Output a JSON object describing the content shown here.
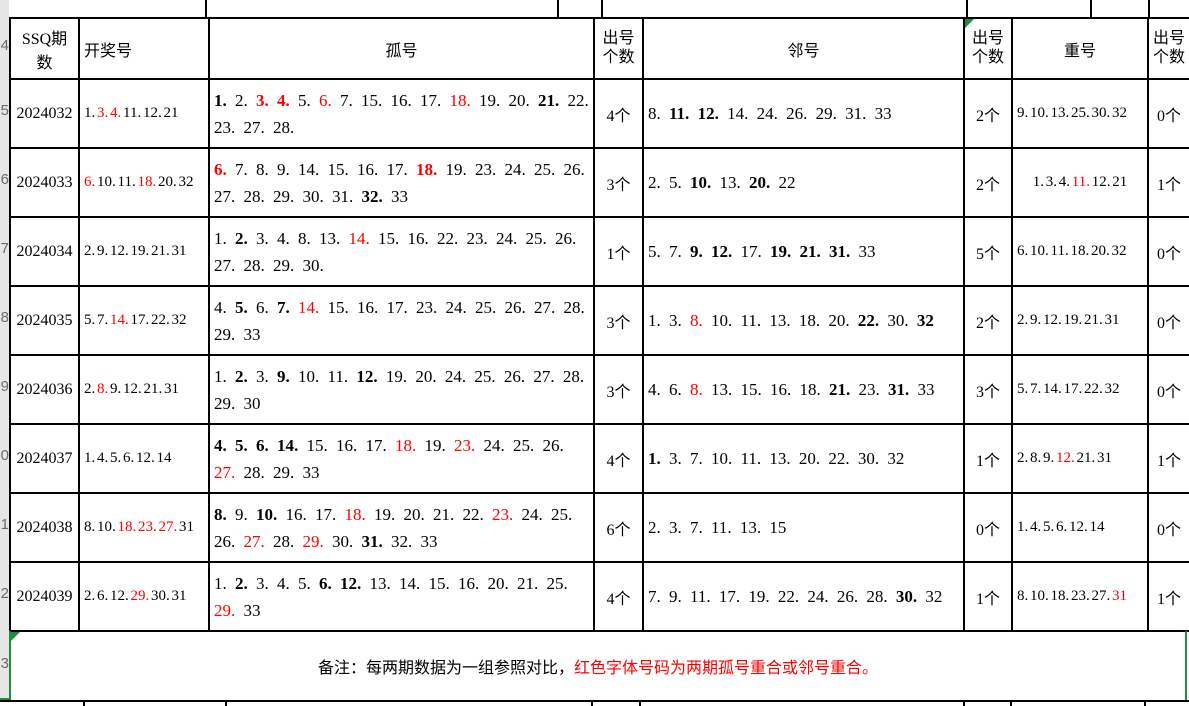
{
  "gutter": {
    "digits": [
      "4",
      "5",
      "6",
      "7",
      "8",
      "9",
      "0",
      "1",
      "2",
      "3"
    ]
  },
  "header": {
    "cols": [
      "SSQ期数",
      "开奖号",
      "孤号",
      "出号个数",
      "邻号",
      "出号个数",
      "重号",
      "出号个数"
    ]
  },
  "rows": [
    {
      "period": "2024032",
      "draw": [
        [
          "1.",
          ""
        ],
        [
          "3.",
          "r"
        ],
        [
          "4.",
          "r"
        ],
        [
          "11.",
          ""
        ],
        [
          "12.",
          ""
        ],
        [
          "21",
          ""
        ]
      ],
      "gu": [
        [
          "1.",
          "b"
        ],
        [
          "2.",
          ""
        ],
        [
          "3.",
          "br"
        ],
        [
          "4.",
          "br"
        ],
        [
          "5.",
          ""
        ],
        [
          "6.",
          "r"
        ],
        [
          "7.",
          ""
        ],
        [
          "15.",
          ""
        ],
        [
          "16.",
          ""
        ],
        [
          "17.",
          ""
        ],
        [
          "18.",
          "r"
        ],
        [
          "19.",
          ""
        ],
        [
          "20.",
          ""
        ],
        [
          "21.",
          "b"
        ],
        [
          "22.",
          ""
        ],
        [
          "23.",
          ""
        ],
        [
          "27.",
          ""
        ],
        [
          "28.",
          ""
        ]
      ],
      "gu_count": "4个",
      "lin": [
        [
          "8.",
          ""
        ],
        [
          "11.",
          "b"
        ],
        [
          "12.",
          "b"
        ],
        [
          "14.",
          ""
        ],
        [
          "24.",
          ""
        ],
        [
          "26.",
          ""
        ],
        [
          "29.",
          ""
        ],
        [
          "31.",
          ""
        ],
        [
          "33",
          ""
        ]
      ],
      "lin_count": "2个",
      "chong": [
        [
          "9.",
          ""
        ],
        [
          "10.",
          ""
        ],
        [
          "13.",
          ""
        ],
        [
          "25.",
          ""
        ],
        [
          "30.",
          ""
        ],
        [
          "32",
          ""
        ]
      ],
      "chong_count": "0个"
    },
    {
      "period": "2024033",
      "draw": [
        [
          "6.",
          "r"
        ],
        [
          "10.",
          ""
        ],
        [
          "11.",
          ""
        ],
        [
          "18.",
          "r"
        ],
        [
          "20.",
          ""
        ],
        [
          "32",
          ""
        ]
      ],
      "gu": [
        [
          "6.",
          "br"
        ],
        [
          "7.",
          ""
        ],
        [
          "8.",
          ""
        ],
        [
          "9.",
          ""
        ],
        [
          "14.",
          ""
        ],
        [
          "15.",
          ""
        ],
        [
          "16.",
          ""
        ],
        [
          "17.",
          ""
        ],
        [
          "18.",
          "br"
        ],
        [
          "19.",
          ""
        ],
        [
          "23.",
          ""
        ],
        [
          "24.",
          ""
        ],
        [
          "25.",
          ""
        ],
        [
          "26.",
          ""
        ],
        [
          "27.",
          ""
        ],
        [
          "28.",
          ""
        ],
        [
          "29.",
          ""
        ],
        [
          "30.",
          ""
        ],
        [
          "31.",
          ""
        ],
        [
          "32.",
          "b"
        ],
        [
          "33",
          ""
        ]
      ],
      "gu_count": "3个",
      "lin": [
        [
          "2.",
          ""
        ],
        [
          "5.",
          ""
        ],
        [
          "10.",
          "b"
        ],
        [
          "13.",
          ""
        ],
        [
          "20.",
          "b"
        ],
        [
          "22",
          ""
        ]
      ],
      "lin_count": "2个",
      "chong": [
        [
          "1.",
          ""
        ],
        [
          "3.",
          ""
        ],
        [
          "4.",
          ""
        ],
        [
          "11.",
          "r"
        ],
        [
          "12.",
          ""
        ],
        [
          "21",
          ""
        ]
      ],
      "chong_align": "center",
      "chong_count": "1个"
    },
    {
      "period": "2024034",
      "draw": [
        [
          "2.",
          ""
        ],
        [
          "9.",
          ""
        ],
        [
          "12.",
          ""
        ],
        [
          "19.",
          ""
        ],
        [
          "21.",
          ""
        ],
        [
          "31",
          ""
        ]
      ],
      "gu": [
        [
          "1.",
          ""
        ],
        [
          "2.",
          "b"
        ],
        [
          "3.",
          ""
        ],
        [
          "4.",
          ""
        ],
        [
          "8.",
          ""
        ],
        [
          "13.",
          ""
        ],
        [
          "14.",
          "r"
        ],
        [
          "15.",
          ""
        ],
        [
          "16.",
          ""
        ],
        [
          "22.",
          ""
        ],
        [
          "23.",
          ""
        ],
        [
          "24.",
          ""
        ],
        [
          "25.",
          ""
        ],
        [
          "26.",
          ""
        ],
        [
          "27.",
          ""
        ],
        [
          "28.",
          ""
        ],
        [
          "29.",
          ""
        ],
        [
          "30.",
          ""
        ]
      ],
      "gu_count": "1个",
      "lin": [
        [
          "5.",
          ""
        ],
        [
          "7.",
          ""
        ],
        [
          "9.",
          "b"
        ],
        [
          "12.",
          "b"
        ],
        [
          "17.",
          ""
        ],
        [
          "19.",
          "b"
        ],
        [
          "21.",
          "b"
        ],
        [
          "31.",
          "b"
        ],
        [
          "33",
          ""
        ]
      ],
      "lin_count": "5个",
      "chong": [
        [
          "6.",
          ""
        ],
        [
          "10.",
          ""
        ],
        [
          "11.",
          ""
        ],
        [
          "18.",
          ""
        ],
        [
          "20.",
          ""
        ],
        [
          "32",
          ""
        ]
      ],
      "chong_count": "0个"
    },
    {
      "period": "2024035",
      "draw": [
        [
          "5.",
          ""
        ],
        [
          "7.",
          ""
        ],
        [
          "14.",
          "r"
        ],
        [
          "17.",
          ""
        ],
        [
          "22.",
          ""
        ],
        [
          "32",
          ""
        ]
      ],
      "gu": [
        [
          "4.",
          ""
        ],
        [
          "5.",
          "b"
        ],
        [
          "6.",
          ""
        ],
        [
          "7.",
          "b"
        ],
        [
          "14.",
          "r"
        ],
        [
          "15.",
          ""
        ],
        [
          "16.",
          ""
        ],
        [
          "17.",
          ""
        ],
        [
          "23.",
          ""
        ],
        [
          "24.",
          ""
        ],
        [
          "25.",
          ""
        ],
        [
          "26.",
          ""
        ],
        [
          "27.",
          ""
        ],
        [
          "28.",
          ""
        ],
        [
          "29.",
          ""
        ],
        [
          "33",
          ""
        ]
      ],
      "gu_count": "3个",
      "lin": [
        [
          "1.",
          ""
        ],
        [
          "3.",
          ""
        ],
        [
          "8.",
          "r"
        ],
        [
          "10.",
          ""
        ],
        [
          "11.",
          ""
        ],
        [
          "13.",
          ""
        ],
        [
          "18.",
          ""
        ],
        [
          "20.",
          ""
        ],
        [
          "22.",
          "b"
        ],
        [
          "30.",
          ""
        ],
        [
          "32",
          "b"
        ]
      ],
      "lin_count": "2个",
      "chong": [
        [
          "2.",
          ""
        ],
        [
          "9.",
          ""
        ],
        [
          "12.",
          ""
        ],
        [
          "19.",
          ""
        ],
        [
          "21.",
          ""
        ],
        [
          "31",
          ""
        ]
      ],
      "chong_count": "0个"
    },
    {
      "period": "2024036",
      "draw": [
        [
          "2.",
          ""
        ],
        [
          "8.",
          "r"
        ],
        [
          "9.",
          ""
        ],
        [
          "12.",
          ""
        ],
        [
          "21.",
          ""
        ],
        [
          "31",
          ""
        ]
      ],
      "gu": [
        [
          "1.",
          ""
        ],
        [
          "2.",
          "b"
        ],
        [
          "3.",
          ""
        ],
        [
          "9.",
          "b"
        ],
        [
          "10.",
          ""
        ],
        [
          "11.",
          ""
        ],
        [
          "12.",
          "b"
        ],
        [
          "19.",
          ""
        ],
        [
          "20.",
          ""
        ],
        [
          "24.",
          ""
        ],
        [
          "25.",
          ""
        ],
        [
          "26.",
          ""
        ],
        [
          "27.",
          ""
        ],
        [
          "28.",
          ""
        ],
        [
          "29.",
          ""
        ],
        [
          "30",
          ""
        ]
      ],
      "gu_count": "3个",
      "lin": [
        [
          "4.",
          ""
        ],
        [
          "6.",
          ""
        ],
        [
          "8.",
          "r"
        ],
        [
          "13.",
          ""
        ],
        [
          "15.",
          ""
        ],
        [
          "16.",
          ""
        ],
        [
          "18.",
          ""
        ],
        [
          "21.",
          "b"
        ],
        [
          "23.",
          ""
        ],
        [
          "31.",
          "b"
        ],
        [
          "33",
          ""
        ]
      ],
      "lin_count": "3个",
      "chong": [
        [
          "5.",
          ""
        ],
        [
          "7.",
          ""
        ],
        [
          "14.",
          ""
        ],
        [
          "17.",
          ""
        ],
        [
          "22.",
          ""
        ],
        [
          "32",
          ""
        ]
      ],
      "chong_count": "0个"
    },
    {
      "period": "2024037",
      "draw": [
        [
          "1.",
          ""
        ],
        [
          "4.",
          ""
        ],
        [
          "5.",
          ""
        ],
        [
          "6.",
          ""
        ],
        [
          "12.",
          ""
        ],
        [
          "14",
          ""
        ]
      ],
      "gu": [
        [
          "4.",
          "b"
        ],
        [
          "5.",
          "b"
        ],
        [
          "6.",
          "b"
        ],
        [
          "14.",
          "b"
        ],
        [
          "15.",
          ""
        ],
        [
          "16.",
          ""
        ],
        [
          "17.",
          ""
        ],
        [
          "18.",
          "r"
        ],
        [
          "19.",
          ""
        ],
        [
          "23.",
          "r"
        ],
        [
          "24.",
          ""
        ],
        [
          "25.",
          ""
        ],
        [
          "26.",
          ""
        ],
        [
          "27.",
          "r"
        ],
        [
          "28.",
          ""
        ],
        [
          "29.",
          ""
        ],
        [
          "33",
          ""
        ]
      ],
      "gu_count": "4个",
      "lin": [
        [
          "1.",
          "b"
        ],
        [
          "3.",
          ""
        ],
        [
          "7.",
          ""
        ],
        [
          "10.",
          ""
        ],
        [
          "11.",
          ""
        ],
        [
          "13.",
          ""
        ],
        [
          "20.",
          ""
        ],
        [
          "22.",
          ""
        ],
        [
          "30.",
          ""
        ],
        [
          "32",
          ""
        ]
      ],
      "lin_count": "1个",
      "chong": [
        [
          "2.",
          ""
        ],
        [
          "8.",
          ""
        ],
        [
          "9.",
          ""
        ],
        [
          "12.",
          "r"
        ],
        [
          "21.",
          ""
        ],
        [
          "31",
          ""
        ]
      ],
      "chong_count": "1个"
    },
    {
      "period": "2024038",
      "draw": [
        [
          "8.",
          ""
        ],
        [
          "10.",
          ""
        ],
        [
          "18.",
          "r"
        ],
        [
          "23.",
          "r"
        ],
        [
          "27.",
          "r"
        ],
        [
          "31",
          ""
        ]
      ],
      "gu": [
        [
          "8.",
          "b"
        ],
        [
          "9.",
          ""
        ],
        [
          "10.",
          "b"
        ],
        [
          "16.",
          ""
        ],
        [
          "17.",
          ""
        ],
        [
          "18.",
          "r"
        ],
        [
          "19.",
          ""
        ],
        [
          "20.",
          ""
        ],
        [
          "21.",
          ""
        ],
        [
          "22.",
          ""
        ],
        [
          "23.",
          "r"
        ],
        [
          "24.",
          ""
        ],
        [
          "25.",
          ""
        ],
        [
          "26.",
          ""
        ],
        [
          "27.",
          "r"
        ],
        [
          "28.",
          ""
        ],
        [
          "29.",
          "r"
        ],
        [
          "30.",
          ""
        ],
        [
          "31.",
          "b"
        ],
        [
          "32.",
          ""
        ],
        [
          "33",
          ""
        ]
      ],
      "gu_count": "6个",
      "lin": [
        [
          "2.",
          ""
        ],
        [
          "3.",
          ""
        ],
        [
          "7.",
          ""
        ],
        [
          "11.",
          ""
        ],
        [
          "13.",
          ""
        ],
        [
          "15",
          ""
        ]
      ],
      "lin_count": "0个",
      "chong": [
        [
          "1.",
          ""
        ],
        [
          "4.",
          ""
        ],
        [
          "5.",
          ""
        ],
        [
          "6.",
          ""
        ],
        [
          "12.",
          ""
        ],
        [
          "14",
          ""
        ]
      ],
      "chong_count": "0个"
    },
    {
      "period": "2024039",
      "draw": [
        [
          "2.",
          ""
        ],
        [
          "6.",
          ""
        ],
        [
          "12.",
          ""
        ],
        [
          "29.",
          "r"
        ],
        [
          "30.",
          ""
        ],
        [
          "31",
          ""
        ]
      ],
      "gu": [
        [
          "1.",
          ""
        ],
        [
          "2.",
          "b"
        ],
        [
          "3.",
          ""
        ],
        [
          "4.",
          ""
        ],
        [
          "5.",
          ""
        ],
        [
          "6.",
          "b"
        ],
        [
          "12.",
          "b"
        ],
        [
          "13.",
          ""
        ],
        [
          "14.",
          ""
        ],
        [
          "15.",
          ""
        ],
        [
          "16.",
          ""
        ],
        [
          "20.",
          ""
        ],
        [
          "21.",
          ""
        ],
        [
          "25.",
          ""
        ],
        [
          "29.",
          "r"
        ],
        [
          "33",
          ""
        ]
      ],
      "gu_count": "4个",
      "lin": [
        [
          "7.",
          ""
        ],
        [
          "9.",
          ""
        ],
        [
          "11.",
          ""
        ],
        [
          "17.",
          ""
        ],
        [
          "19.",
          ""
        ],
        [
          "22.",
          ""
        ],
        [
          "24.",
          ""
        ],
        [
          "26.",
          ""
        ],
        [
          "28.",
          ""
        ],
        [
          "30.",
          "b"
        ],
        [
          "32",
          ""
        ]
      ],
      "lin_count": "1个",
      "chong": [
        [
          "8.",
          ""
        ],
        [
          "10.",
          ""
        ],
        [
          "18.",
          ""
        ],
        [
          "23.",
          ""
        ],
        [
          "27.",
          ""
        ],
        [
          "31",
          "r"
        ]
      ],
      "chong_count": "1个"
    }
  ],
  "footer": {
    "note_black": "备注：每两期数据为一组参照对比，",
    "note_red": "红色字体号码为两期孤号重合或邻号重合。"
  }
}
